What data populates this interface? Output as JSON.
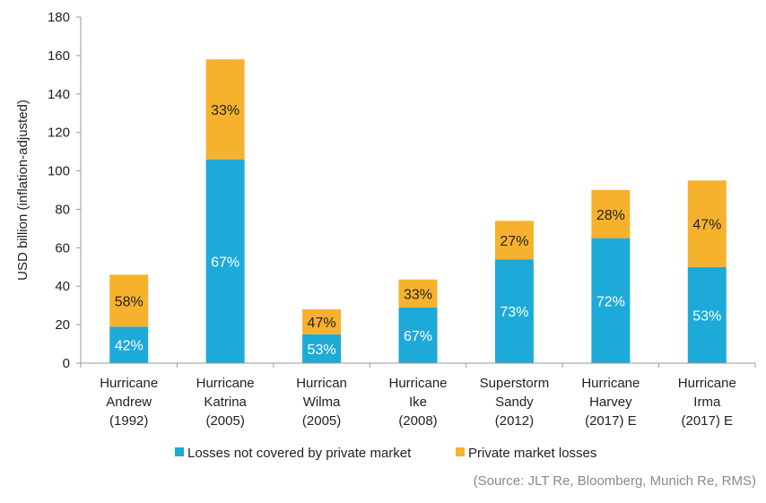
{
  "chart_data": {
    "type": "bar",
    "stacked": true,
    "title": "",
    "xlabel": "",
    "ylabel": "USD billion (inflation-adjusted)",
    "ylim": [
      0,
      180
    ],
    "yticks": [
      0,
      20,
      40,
      60,
      80,
      100,
      120,
      140,
      160,
      180
    ],
    "grid": false,
    "legend_position": "bottom",
    "categories": [
      [
        "Hurricane",
        "Andrew",
        "(1992)"
      ],
      [
        "Hurricane",
        "Katrina",
        "(2005)"
      ],
      [
        "Hurrican",
        "Wilma",
        "(2005)"
      ],
      [
        "Hurricane",
        "Ike",
        "(2008)"
      ],
      [
        "Superstorm",
        "Sandy",
        "(2012)"
      ],
      [
        "Hurricane",
        "Harvey",
        "(2017) E"
      ],
      [
        "Hurricane",
        "Irma",
        "(2017) E"
      ]
    ],
    "series": [
      {
        "name": "Losses not covered by private market",
        "color": "#1EAAD8",
        "values": [
          19,
          106,
          15,
          29,
          54,
          65,
          50
        ],
        "labels": [
          "42%",
          "67%",
          "53%",
          "67%",
          "73%",
          "72%",
          "53%"
        ]
      },
      {
        "name": "Private market losses",
        "color": "#F7B22D",
        "values": [
          27,
          52,
          13,
          14.5,
          20,
          25,
          45
        ],
        "labels": [
          "58%",
          "33%",
          "47%",
          "33%",
          "27%",
          "28%",
          "47%"
        ]
      }
    ],
    "source": "(Source: JLT Re, Bloomberg, Munich Re, RMS)"
  }
}
